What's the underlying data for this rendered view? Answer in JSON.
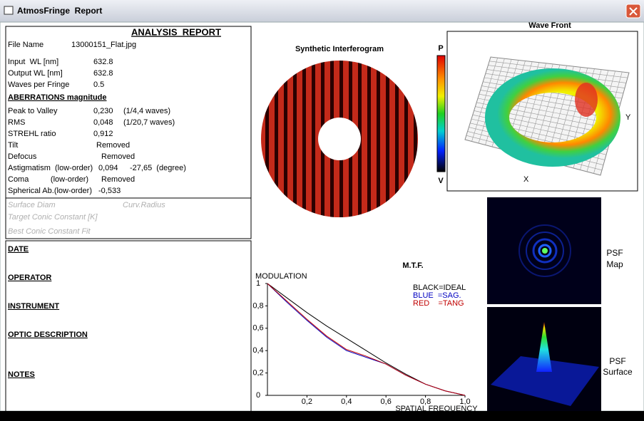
{
  "window": {
    "title": "AtmosFringe  Report"
  },
  "report": {
    "title": "ANALYSIS  REPORT",
    "rows": [
      {
        "label": "File Name",
        "value": "13000151_Flat.jpg"
      },
      {
        "label": "Input  WL [nm]",
        "value": "632.8"
      },
      {
        "label": "Output WL [nm]",
        "value": "632.8"
      },
      {
        "label": "Waves per Fringe",
        "value": "0.5"
      },
      {
        "label": "ABERRATIONS magnitude"
      },
      {
        "label": "Peak to Valley",
        "value": "0,230",
        "extra": "(1/4,4 waves)"
      },
      {
        "label": "RMS",
        "value": "0,048",
        "extra": "(1/20,7 waves)"
      },
      {
        "label": "STREHL ratio",
        "value": "0,912"
      },
      {
        "label": "Tilt",
        "value": "Removed"
      },
      {
        "label": "Defocus",
        "value": "Removed"
      },
      {
        "label": "Astigmatism  (low-order)",
        "value": "0,094",
        "extra": "-27,65  (degree)"
      },
      {
        "label": "Coma          (low-order)",
        "value": "Removed"
      },
      {
        "label": "Spherical Ab.(low-order)",
        "value": "-0,533"
      }
    ],
    "surface": [
      "Surface Diam",
      "Curv.Radius",
      "Target Conic Constant [K]",
      "Best Conic Constant Fit"
    ],
    "sections": [
      "DATE",
      "OPERATOR",
      "INSTRUMENT",
      "OPTIC DESCRIPTION",
      "NOTES"
    ]
  },
  "interferogram": {
    "title": "Synthetic Interferogram",
    "scale_top": "P",
    "scale_bottom": "V"
  },
  "wavefront": {
    "title": "Wave Front",
    "x_label": "X",
    "y_label": "Y"
  },
  "psf": {
    "map": [
      "PSF",
      "Map"
    ],
    "surface": [
      "PSF",
      "Surface"
    ]
  },
  "chart_data": {
    "type": "line",
    "title": "M.T.F.",
    "y_label": "MODULATION",
    "x_label": "SPATIAL FREQUENCY",
    "x": [
      0,
      0.1,
      0.2,
      0.3,
      0.4,
      0.5,
      0.6,
      0.7,
      0.8,
      0.9,
      1.0
    ],
    "series": [
      {
        "name": "BLACK=IDEAL",
        "color": "#000000",
        "values": [
          1,
          0.87,
          0.74,
          0.62,
          0.51,
          0.4,
          0.29,
          0.19,
          0.1,
          0.04,
          0
        ]
      },
      {
        "name": "BLUE  =SAG.",
        "color": "#0000c0",
        "values": [
          1,
          0.83,
          0.67,
          0.52,
          0.4,
          0.34,
          0.28,
          0.18,
          0.1,
          0.04,
          0
        ]
      },
      {
        "name": "RED    =TANG",
        "color": "#c00000",
        "values": [
          1,
          0.84,
          0.68,
          0.53,
          0.41,
          0.35,
          0.28,
          0.18,
          0.1,
          0.04,
          0
        ]
      }
    ],
    "xlim": [
      0,
      1
    ],
    "ylim": [
      0,
      1
    ],
    "xticks": [
      {
        "value": 0.2,
        "label": "0,2"
      },
      {
        "value": 0.4,
        "label": "0,4"
      },
      {
        "value": 0.6,
        "label": "0,6"
      },
      {
        "value": 0.8,
        "label": "0,8"
      },
      {
        "value": 1.0,
        "label": "1,0"
      }
    ],
    "yticks": [
      0,
      {
        "value": 0.2,
        "label": "0,2"
      },
      {
        "value": 0.4,
        "label": "0,4"
      },
      {
        "value": 0.6,
        "label": "0,6"
      },
      {
        "value": 0.8,
        "label": "0,8"
      },
      1
    ]
  }
}
